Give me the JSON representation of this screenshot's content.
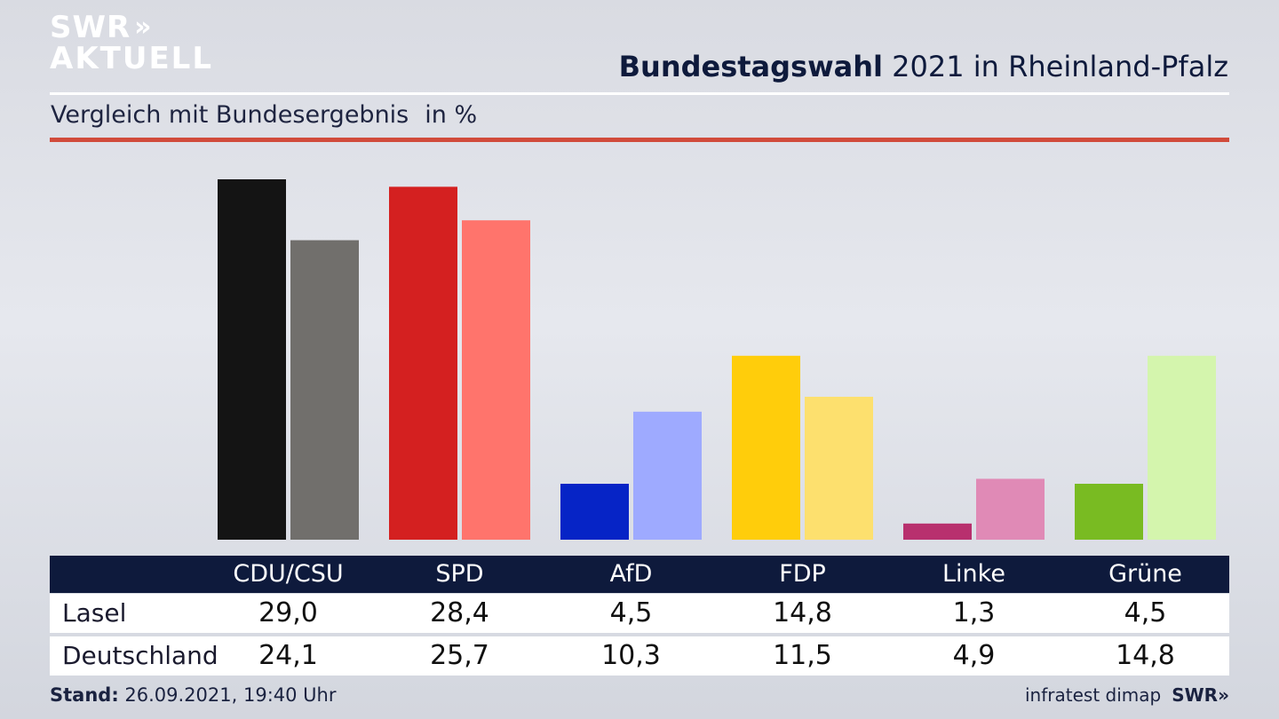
{
  "header": {
    "logo_line1": "SWR",
    "logo_line2": "AKTUELL",
    "logo_chevrons": "»",
    "title_bold": "Bundestagswahl",
    "title_rest": " 2021 in Rheinland-Pfalz",
    "subtitle": "Vergleich mit Bundesergebnis",
    "subtitle_unit": "in %"
  },
  "chart_data": {
    "type": "bar",
    "categories": [
      "CDU/CSU",
      "SPD",
      "AfD",
      "FDP",
      "Linke",
      "Grüne"
    ],
    "series": [
      {
        "name": "Lasel",
        "values": [
          29.0,
          28.4,
          4.5,
          14.8,
          1.3,
          4.5
        ]
      },
      {
        "name": "Deutschland",
        "values": [
          24.1,
          25.7,
          10.3,
          11.5,
          4.9,
          14.8
        ]
      }
    ],
    "display_values": [
      [
        "29,0",
        "28,4",
        "4,5",
        "14,8",
        "1,3",
        "4,5"
      ],
      [
        "24,1",
        "25,7",
        "10,3",
        "11,5",
        "4,9",
        "14,8"
      ]
    ],
    "colors": {
      "Lasel": [
        "#141414",
        "#d42020",
        "#0624c6",
        "#ffcd0b",
        "#b8306e",
        "#79bb22"
      ],
      "Deutschland": [
        "#716f6c",
        "#ff746c",
        "#9eaaff",
        "#fde06e",
        "#e08ab6",
        "#d4f5ad"
      ]
    },
    "ylim": [
      0,
      30
    ],
    "grid": false,
    "legend": "table-below"
  },
  "footer": {
    "stand_label": "Stand:",
    "stand_value": " 26.09.2021, 19:40 Uhr",
    "source": "infratest dimap",
    "source_logo": "SWR»"
  }
}
